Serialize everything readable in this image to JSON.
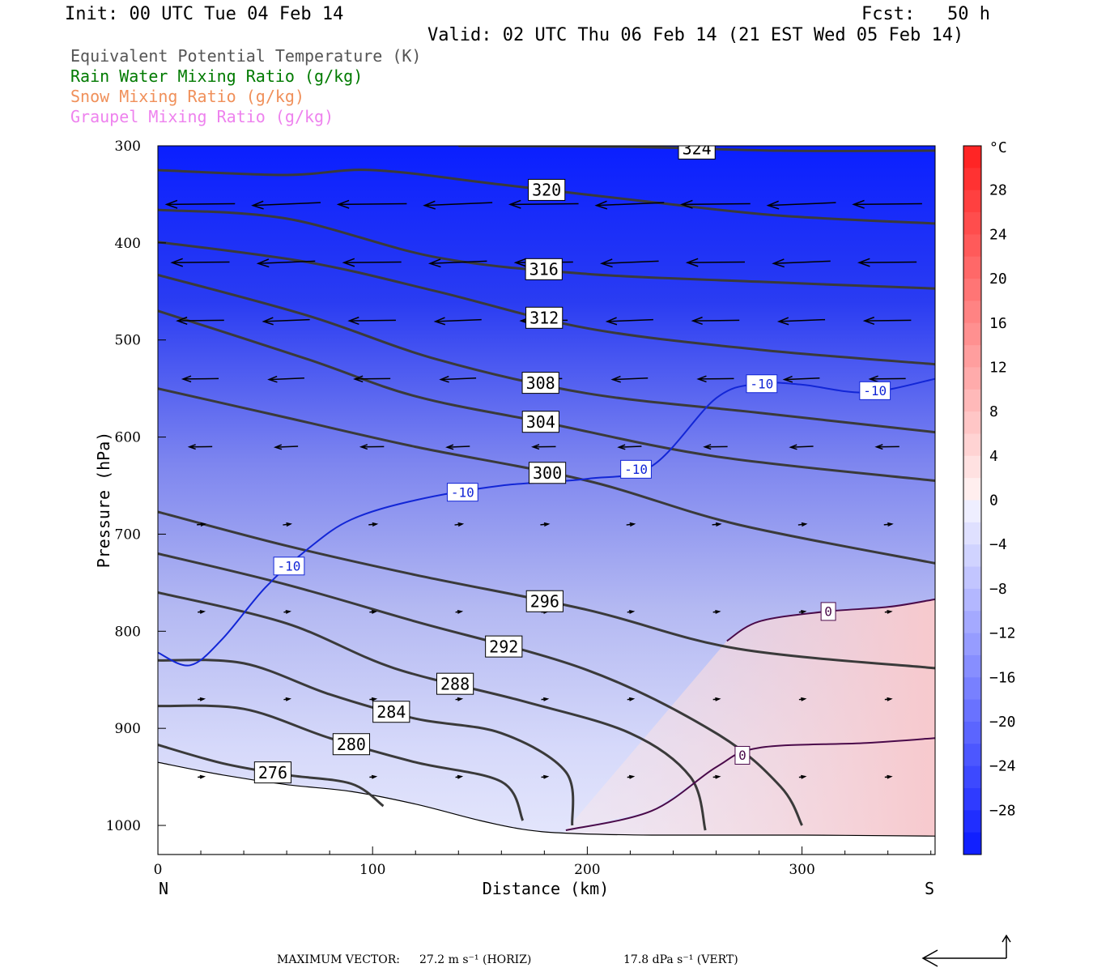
{
  "header": {
    "init": "Init: 00 UTC Tue 04 Feb 14",
    "fcst": "Fcst:   50 h",
    "valid": "Valid: 02 UTC Thu 06 Feb 14 (21 EST Wed 05 Feb 14)"
  },
  "legend": [
    {
      "text": "Equivalent Potential Temperature (K)",
      "color": "#555555"
    },
    {
      "text": "Rain Water Mixing Ratio (g/kg)",
      "color": "#007a00"
    },
    {
      "text": "Snow Mixing Ratio (g/kg)",
      "color": "#f0905a"
    },
    {
      "text": "Graupel Mixing Ratio (g/kg)",
      "color": "#ee82ee"
    }
  ],
  "footer": {
    "max_vector_label": "MAXIMUM VECTOR:",
    "horiz": "27.2 m s⁻¹ (HORIZ)",
    "vert": "17.8 dPa s⁻¹ (VERT)"
  },
  "chart_data": {
    "type": "heatmap",
    "xlabel": "Distance (km)",
    "ylabel": "Pressure (hPa)",
    "xlim": [
      0,
      362
    ],
    "ylim": [
      300,
      1030
    ],
    "y_scale": "linear-inverted",
    "x_ticks": [
      0,
      100,
      200,
      300
    ],
    "y_ticks": [
      300,
      400,
      500,
      600,
      700,
      800,
      900,
      1000
    ],
    "x_end_labels": {
      "left": "N",
      "right": "S"
    },
    "colorbar": {
      "unit": "°C",
      "ticks": [
        28,
        24,
        20,
        16,
        12,
        8,
        4,
        0,
        -4,
        -8,
        -12,
        -16,
        -20,
        -24,
        -28
      ],
      "range": [
        -32,
        32
      ]
    },
    "theta_e_contours": [
      {
        "value": 324,
        "points": [
          [
            140,
            300
          ],
          [
            220,
            301
          ],
          [
            290,
            305
          ],
          [
            362,
            305
          ]
        ]
      },
      {
        "value": 320,
        "points": [
          [
            0,
            325
          ],
          [
            60,
            330
          ],
          [
            100,
            325
          ],
          [
            160,
            340
          ],
          [
            230,
            358
          ],
          [
            290,
            372
          ],
          [
            362,
            380
          ]
        ]
      },
      {
        "value": 316,
        "points": [
          [
            0,
            366
          ],
          [
            60,
            375
          ],
          [
            130,
            415
          ],
          [
            200,
            432
          ],
          [
            280,
            440
          ],
          [
            362,
            447
          ]
        ]
      },
      {
        "value": 312,
        "points": [
          [
            0,
            399
          ],
          [
            70,
            420
          ],
          [
            130,
            450
          ],
          [
            200,
            488
          ],
          [
            280,
            510
          ],
          [
            362,
            525
          ]
        ]
      },
      {
        "value": 308,
        "points": [
          [
            0,
            433
          ],
          [
            70,
            475
          ],
          [
            130,
            520
          ],
          [
            200,
            555
          ],
          [
            280,
            575
          ],
          [
            362,
            595
          ]
        ]
      },
      {
        "value": 304,
        "points": [
          [
            0,
            470
          ],
          [
            70,
            520
          ],
          [
            120,
            558
          ],
          [
            180,
            585
          ],
          [
            260,
            620
          ],
          [
            362,
            645
          ]
        ]
      },
      {
        "value": 300,
        "points": [
          [
            0,
            550
          ],
          [
            60,
            580
          ],
          [
            120,
            610
          ],
          [
            200,
            645
          ],
          [
            270,
            690
          ],
          [
            362,
            730
          ]
        ]
      },
      {
        "value": 296,
        "points": [
          [
            0,
            677
          ],
          [
            60,
            712
          ],
          [
            120,
            742
          ],
          [
            200,
            778
          ],
          [
            270,
            818
          ],
          [
            362,
            838
          ]
        ]
      },
      {
        "value": 292,
        "points": [
          [
            0,
            720
          ],
          [
            60,
            752
          ],
          [
            120,
            790
          ],
          [
            200,
            840
          ],
          [
            260,
            905
          ],
          [
            290,
            960
          ],
          [
            300,
            1000
          ]
        ]
      },
      {
        "value": 288,
        "points": [
          [
            0,
            760
          ],
          [
            60,
            792
          ],
          [
            110,
            838
          ],
          [
            170,
            872
          ],
          [
            220,
            905
          ],
          [
            248,
            950
          ],
          [
            255,
            1005
          ]
        ]
      },
      {
        "value": 284,
        "points": [
          [
            0,
            830
          ],
          [
            40,
            833
          ],
          [
            80,
            865
          ],
          [
            120,
            890
          ],
          [
            160,
            905
          ],
          [
            190,
            945
          ],
          [
            193,
            1000
          ]
        ]
      },
      {
        "value": 280,
        "points": [
          [
            0,
            877
          ],
          [
            40,
            880
          ],
          [
            80,
            910
          ],
          [
            120,
            935
          ],
          [
            160,
            955
          ],
          [
            170,
            995
          ]
        ]
      },
      {
        "value": 276,
        "points": [
          [
            0,
            917
          ],
          [
            30,
            936
          ],
          [
            60,
            948
          ],
          [
            90,
            957
          ],
          [
            105,
            980
          ]
        ]
      }
    ],
    "isotherm_contours": [
      {
        "value": -10,
        "points": [
          [
            0,
            822
          ],
          [
            15,
            835
          ],
          [
            30,
            808
          ],
          [
            50,
            755
          ],
          [
            70,
            715
          ],
          [
            90,
            685
          ],
          [
            120,
            665
          ],
          [
            160,
            650
          ],
          [
            200,
            643
          ],
          [
            230,
            630
          ],
          [
            260,
            560
          ],
          [
            280,
            545
          ],
          [
            300,
            546
          ],
          [
            330,
            554
          ],
          [
            362,
            540
          ]
        ]
      },
      {
        "value": 0,
        "points": [
          [
            265,
            810
          ],
          [
            280,
            790
          ],
          [
            310,
            780
          ],
          [
            340,
            775
          ],
          [
            362,
            767
          ]
        ]
      },
      {
        "value": 0,
        "points": [
          [
            190,
            1005
          ],
          [
            230,
            985
          ],
          [
            260,
            940
          ],
          [
            280,
            920
          ],
          [
            330,
            915
          ],
          [
            362,
            910
          ]
        ]
      }
    ],
    "terrain_pressure": [
      [
        0,
        935
      ],
      [
        30,
        948
      ],
      [
        60,
        958
      ],
      [
        90,
        965
      ],
      [
        120,
        978
      ],
      [
        150,
        995
      ],
      [
        170,
        1004
      ],
      [
        190,
        1008
      ],
      [
        230,
        1010
      ],
      [
        300,
        1010
      ],
      [
        362,
        1011
      ]
    ]
  }
}
